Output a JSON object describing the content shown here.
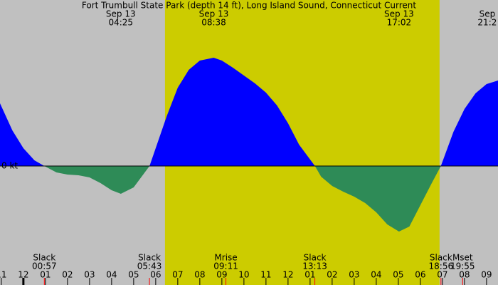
{
  "chart_data": {
    "type": "area",
    "title": "Fort Trumbull State Park (depth 14 ft), Long Island Sound, Connecticut Current",
    "background": "#c0c0c0",
    "band_color": "#cccc00",
    "shaded_band": [
      6.42,
      18.87
    ],
    "xlim": [
      -1.06,
      21.52
    ],
    "ylim": [
      -1.67,
      2.33
    ],
    "yticks": [
      {
        "value": 0,
        "label": "0 kt"
      }
    ],
    "xticks": [
      {
        "value": -1,
        "label": "11"
      },
      {
        "value": 0,
        "label": "12"
      },
      {
        "value": 1,
        "label": "01"
      },
      {
        "value": 2,
        "label": "02"
      },
      {
        "value": 3,
        "label": "03"
      },
      {
        "value": 4,
        "label": "04"
      },
      {
        "value": 5,
        "label": "05"
      },
      {
        "value": 6,
        "label": "06"
      },
      {
        "value": 7,
        "label": "07"
      },
      {
        "value": 8,
        "label": "08"
      },
      {
        "value": 9,
        "label": "09"
      },
      {
        "value": 10,
        "label": "10"
      },
      {
        "value": 11,
        "label": "11"
      },
      {
        "value": 12,
        "label": "12"
      },
      {
        "value": 13,
        "label": "01"
      },
      {
        "value": 14,
        "label": "02"
      },
      {
        "value": 15,
        "label": "03"
      },
      {
        "value": 16,
        "label": "04"
      },
      {
        "value": 17,
        "label": "05"
      },
      {
        "value": 18,
        "label": "06"
      },
      {
        "value": 19,
        "label": "07"
      },
      {
        "value": 20,
        "label": "08"
      },
      {
        "value": 21,
        "label": "09"
      }
    ],
    "x": [
      -1.06,
      -0.5,
      0,
      0.5,
      0.95,
      1.5,
      2,
      2.5,
      3,
      3.5,
      4,
      4.42,
      5,
      5.72,
      6.5,
      7,
      7.5,
      8,
      8.63,
      9,
      9.5,
      10,
      10.5,
      11,
      11.5,
      12,
      12.5,
      13.22,
      13.5,
      14,
      14.5,
      15,
      15.5,
      16,
      16.5,
      17.03,
      17.5,
      18,
      18.5,
      18.93,
      19.5,
      20,
      20.5,
      21,
      21.52
    ],
    "series": [
      {
        "positive_color": "#0000ff",
        "negative_color": "#2e8b57",
        "values": [
          0.88,
          0.5,
          0.25,
          0.08,
          0,
          -0.09,
          -0.12,
          -0.13,
          -0.16,
          -0.24,
          -0.34,
          -0.39,
          -0.3,
          0,
          0.7,
          1.1,
          1.35,
          1.48,
          1.52,
          1.48,
          1.38,
          1.27,
          1.16,
          1.03,
          0.85,
          0.6,
          0.3,
          0,
          -0.15,
          -0.28,
          -0.36,
          -0.43,
          -0.52,
          -0.65,
          -0.82,
          -0.92,
          -0.85,
          -0.55,
          -0.25,
          0,
          0.48,
          0.8,
          1.02,
          1.15,
          1.2
        ]
      }
    ],
    "top_annotations": [
      {
        "date": "Sep 13",
        "time": "04:25"
      },
      {
        "date": "Sep 13",
        "time": "08:38"
      },
      {
        "date": "Sep 13",
        "time": "17:02"
      },
      {
        "date": "Sep",
        "time": "21:2"
      }
    ],
    "events": [
      {
        "label": "Slack",
        "time": "00:57"
      },
      {
        "label": "Slack",
        "time": "05:43"
      },
      {
        "label": "Mrise",
        "time": "09:11"
      },
      {
        "label": "Slack",
        "time": "13:13"
      },
      {
        "label": "Slack",
        "time": "18:56"
      },
      {
        "label": "Mset",
        "time": "19:55"
      }
    ]
  }
}
